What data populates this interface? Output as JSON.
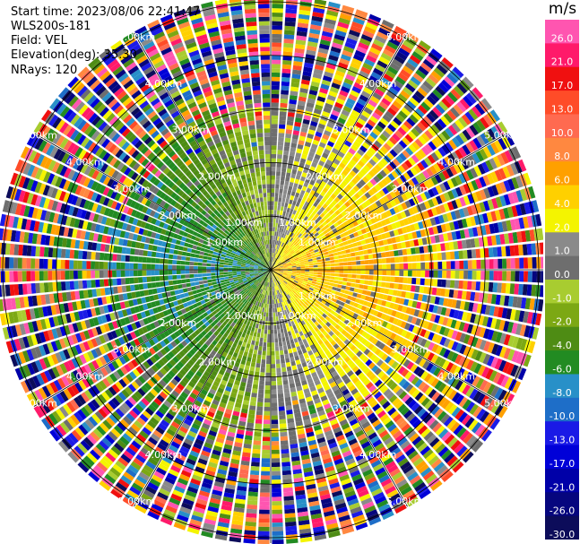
{
  "header": {
    "start_time": "Start time: 2023/08/06 22:41:47",
    "instrument": "WLS200s-181",
    "field": "Field: VEL",
    "elevation": "Elevation(deg): 35.30",
    "nrays": "NRays: 120"
  },
  "chart_data": {
    "type": "heatmap",
    "projection": "polar PPI",
    "field": "VEL",
    "unit": "m/s",
    "n_rays": 120,
    "range_rings_km": [
      1.0,
      2.0,
      3.0,
      4.0,
      5.0
    ],
    "range_ring_labels": [
      "1.00km",
      "2.00km",
      "3.00km",
      "4.00km",
      "5.00km"
    ],
    "max_range_km": 5.1,
    "spoke_angles_deg": [
      0,
      30,
      60,
      90,
      120,
      150,
      180,
      210,
      240,
      270,
      300,
      330
    ],
    "colorbar": {
      "levels": [
        -30.0,
        -26.0,
        -21.0,
        -17.0,
        -13.0,
        -10.0,
        -8.0,
        -6.0,
        -4.0,
        -2.0,
        -1.0,
        0.0,
        1.0,
        2.0,
        4.0,
        6.0,
        8.0,
        10.0,
        13.0,
        17.0,
        21.0,
        26.0
      ],
      "labels": [
        "-30.0",
        "-26.0",
        "-21.0",
        "-17.0",
        "-13.0",
        "-10.0",
        "-8.0",
        "-6.0",
        "-4.0",
        "-2.0",
        "-1.0",
        "0.0",
        "1.0",
        "2.0",
        "4.0",
        "6.0",
        "8.0",
        "10.0",
        "13.0",
        "17.0",
        "21.0",
        "26.0"
      ],
      "colors": [
        "#0c0c5a",
        "#06067e",
        "#0000a8",
        "#0000d8",
        "#1a1ae6",
        "#1e6ec8",
        "#2890c8",
        "#228b22",
        "#4e8c14",
        "#7ca814",
        "#a8cc30",
        "#6e6e6e",
        "#8a8a8a",
        "#f4f400",
        "#ffd000",
        "#ffa000",
        "#ff8840",
        "#ff6a50",
        "#ff4c28",
        "#f01010",
        "#ff1a6a",
        "#ff55b0"
      ]
    },
    "pattern": {
      "near_field_westerly_velocity": -5.0,
      "near_field_easterly_velocity": 5.0,
      "noise_begins_km": 3.6
    }
  }
}
